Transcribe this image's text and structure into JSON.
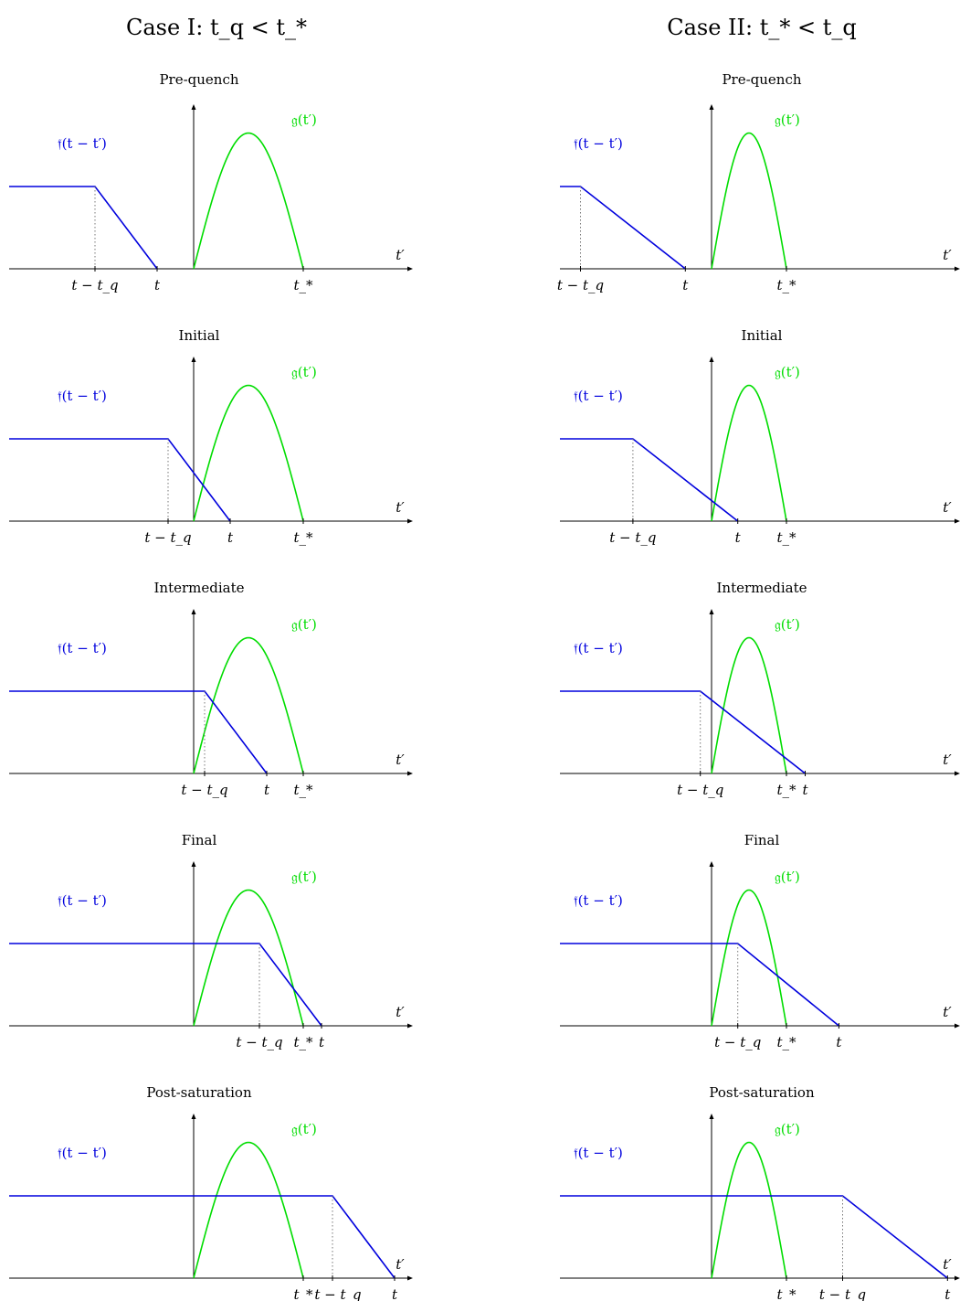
{
  "colors": {
    "f_curve": "#0000dd",
    "g_curve": "#00dd00",
    "axis": "#000000",
    "guide": "#777777"
  },
  "figure": {
    "case_titles": [
      "Case I: t_q < t_*",
      "Case II: t_* < t_q"
    ],
    "panel_titles": [
      "Pre-quench",
      "Initial",
      "Intermediate",
      "Final",
      "Post-saturation"
    ],
    "f_label": "𝔣(t − t′)",
    "g_label": "𝔤(t′)",
    "axis_label": "t′",
    "tick_labels": {
      "t_minus_tq": "t − t_q",
      "t": "t",
      "t_star": "t_*"
    }
  },
  "chart_data": [
    {
      "type": "line",
      "case": "Case I: t_q < t_*",
      "series_labels": [
        "𝔣(t − t′)",
        "𝔤(t′)"
      ],
      "x_axis": "t′",
      "t_star": 3.0,
      "g_peak": 1.65,
      "f_level": 1.0,
      "panels": [
        {
          "title": "Pre-quench",
          "t_minus_tq": -2.7,
          "t": -1.0,
          "ticks_order": [
            "t_minus_tq",
            "t",
            "t_star"
          ]
        },
        {
          "title": "Initial",
          "t_minus_tq": -0.7,
          "t": 1.0,
          "ticks_order": [
            "t_minus_tq",
            "t",
            "t_star"
          ]
        },
        {
          "title": "Intermediate",
          "t_minus_tq": 0.3,
          "t": 2.0,
          "ticks_order": [
            "t_minus_tq",
            "t",
            "t_star"
          ]
        },
        {
          "title": "Final",
          "t_minus_tq": 1.8,
          "t": 3.5,
          "ticks_order": [
            "t_minus_tq",
            "t_star",
            "t"
          ]
        },
        {
          "title": "Post-saturation",
          "t_minus_tq": 3.8,
          "t": 5.5,
          "ticks_order": [
            "t_star",
            "t_minus_tq",
            "t"
          ]
        }
      ]
    },
    {
      "type": "line",
      "case": "Case II: t_* < t_q",
      "series_labels": [
        "𝔣(t − t′)",
        "𝔤(t′)"
      ],
      "x_axis": "t′",
      "t_star": 2.0,
      "g_peak": 1.65,
      "f_level": 1.0,
      "panels": [
        {
          "title": "Pre-quench",
          "t_minus_tq": -3.5,
          "t": -0.7,
          "ticks_order": [
            "t_minus_tq",
            "t",
            "t_star"
          ]
        },
        {
          "title": "Initial",
          "t_minus_tq": -2.1,
          "t": 0.7,
          "ticks_order": [
            "t_minus_tq",
            "t",
            "t_star"
          ]
        },
        {
          "title": "Intermediate",
          "t_minus_tq": -0.3,
          "t": 2.5,
          "ticks_order": [
            "t_minus_tq",
            "t_star",
            "t"
          ]
        },
        {
          "title": "Final",
          "t_minus_tq": 0.7,
          "t": 3.4,
          "ticks_order": [
            "t_minus_tq",
            "t_star",
            "t"
          ]
        },
        {
          "title": "Post-saturation",
          "t_minus_tq": 3.5,
          "t": 6.3,
          "ticks_order": [
            "t_star",
            "t_minus_tq",
            "t"
          ]
        }
      ]
    }
  ]
}
